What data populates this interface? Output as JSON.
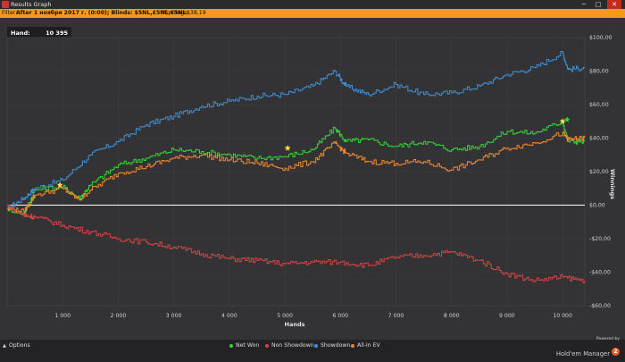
{
  "window": {
    "title": "Results Graph",
    "minimize_glyph": "─",
    "maximize_glyph": "□",
    "close_glyph": "✕"
  },
  "filter": {
    "label": "Filter:",
    "value": "After 1 ноября 2017 г. (0:00); Blinds: $5NL,£5NL,€5NL",
    "winnings_label": "Winnings:",
    "winnings_value": "$38,19"
  },
  "hand_box": {
    "label": "Hand:",
    "value": "10 395"
  },
  "chart_data": {
    "type": "line",
    "xlabel": "Hands",
    "ylabel": "Winnings",
    "xlim": [
      0,
      10400
    ],
    "ylim": [
      -60,
      100
    ],
    "x_ticks": [
      1000,
      2000,
      3000,
      4000,
      5000,
      6000,
      7000,
      8000,
      9000,
      10000
    ],
    "x_tick_labels": [
      "1 000",
      "2 000",
      "3 000",
      "4 000",
      "5 000",
      "6 000",
      "7 000",
      "8 000",
      "9 000",
      "10 000"
    ],
    "y_ticks": [
      100,
      80,
      60,
      40,
      20,
      0,
      -20,
      -40,
      -60
    ],
    "y_tick_labels": [
      "$100,00",
      "$80,00",
      "$60,00",
      "$40,00",
      "$20,00",
      "$0,00",
      "-$20,00",
      "-$40,00",
      "-$60,00"
    ],
    "grid": true,
    "legend_position": "bottom-center",
    "series": [
      {
        "name": "Showdown",
        "color": "#3f8fd8",
        "x": [
          0,
          300,
          500,
          1000,
          1500,
          2000,
          2500,
          3000,
          3500,
          4000,
          4500,
          5000,
          5500,
          5900,
          6100,
          6500,
          7000,
          7500,
          8000,
          8500,
          9000,
          9500,
          10000,
          10100,
          10395
        ],
        "y": [
          -2,
          4,
          10,
          15,
          30,
          38,
          48,
          53,
          59,
          62,
          65,
          66,
          71,
          80,
          71,
          66,
          72,
          66,
          67,
          71,
          78,
          82,
          91,
          81,
          82
        ]
      },
      {
        "name": "Net Won",
        "color": "#33d633",
        "x": [
          0,
          300,
          500,
          1000,
          1300,
          1500,
          2000,
          2500,
          3000,
          3500,
          4000,
          4500,
          5000,
          5500,
          5900,
          6100,
          6500,
          7000,
          7500,
          8000,
          8500,
          9000,
          9500,
          10000,
          10100,
          10395
        ],
        "y": [
          -2,
          -5,
          9,
          11,
          4,
          12,
          24,
          28,
          33,
          32,
          30,
          28,
          29,
          33,
          46,
          38,
          39,
          35,
          38,
          33,
          35,
          44,
          43,
          50,
          38,
          38
        ]
      },
      {
        "name": "All-In EV",
        "color": "#ef8a2e",
        "x": [
          0,
          300,
          500,
          1000,
          1300,
          1500,
          2000,
          2500,
          3000,
          3500,
          4000,
          4500,
          5000,
          5500,
          5900,
          6100,
          6500,
          7000,
          7500,
          8000,
          8500,
          9000,
          9500,
          10000,
          10100,
          10395
        ],
        "y": [
          -2,
          -4,
          6,
          10,
          3,
          9,
          19,
          23,
          28,
          30,
          27,
          25,
          22,
          26,
          37,
          31,
          26,
          25,
          26,
          21,
          27,
          34,
          37,
          43,
          39,
          40
        ]
      },
      {
        "name": "Non Showdown",
        "color": "#d94343",
        "x": [
          0,
          300,
          500,
          1000,
          1500,
          2000,
          2500,
          3000,
          3500,
          4000,
          4500,
          5000,
          5500,
          6000,
          6500,
          7000,
          7500,
          8000,
          8500,
          9000,
          9500,
          10000,
          10395
        ],
        "y": [
          0,
          -6,
          -7,
          -12,
          -16,
          -20,
          -22,
          -25,
          -29,
          -32,
          -33,
          -35,
          -34,
          -34,
          -36,
          -31,
          -30,
          -28,
          -33,
          -41,
          -45,
          -43,
          -45
        ]
      }
    ],
    "markers": [
      {
        "type": "star",
        "color": "#ffe14a",
        "x": 950,
        "y": 12
      },
      {
        "type": "star",
        "color": "#ffe14a",
        "x": 5050,
        "y": 34
      },
      {
        "type": "star",
        "color": "#ffe14a",
        "x": 10000,
        "y": 50
      },
      {
        "type": "star",
        "color": "#33d633",
        "x": 10080,
        "y": 51
      },
      {
        "type": "star",
        "color": "#d94343",
        "x": 330,
        "y": -6
      }
    ]
  },
  "legend_items": [
    {
      "label": "Net Won",
      "color": "#33d633"
    },
    {
      "label": "Non Showdown",
      "color": "#d94343"
    },
    {
      "label": "Showdown",
      "color": "#3f8fd8"
    },
    {
      "label": "All-In EV",
      "color": "#ef8a2e"
    }
  ],
  "footer": {
    "options_label": "Options",
    "options_caret": "▲",
    "powered_by": "Powered by",
    "brand": "Hold'em Manager",
    "brand_badge": "2"
  }
}
